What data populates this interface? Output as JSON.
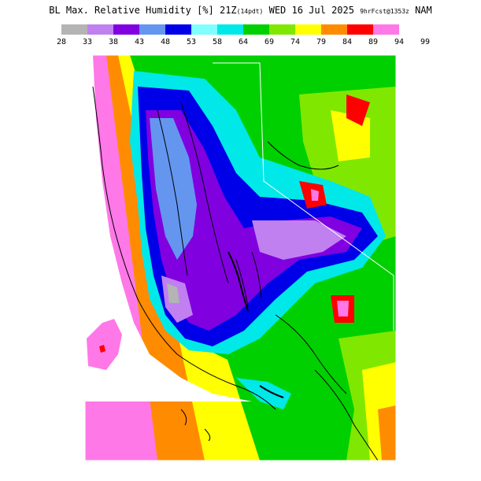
{
  "title": {
    "main": "BL Max. Relative Humidity [%] 21Z",
    "local": "(14pdt)",
    "date": "WED 16 Jul 2025",
    "fcst": "9hrFcst@1353z",
    "model": "NAM"
  },
  "legend": {
    "ticks": [
      "28",
      "33",
      "38",
      "43",
      "48",
      "53",
      "58",
      "64",
      "69",
      "74",
      "79",
      "84",
      "89",
      "94",
      "99"
    ],
    "colors": [
      "#b4b4b4",
      "#c080f0",
      "#8000e0",
      "#6496f0",
      "#0000e8",
      "#80ffff",
      "#00e8e8",
      "#00d000",
      "#80e800",
      "#ffff00",
      "#ff8c00",
      "#ff0000",
      "#ff78e8"
    ]
  },
  "chart_data": {
    "type": "heatmap",
    "variable": "BL Max. Relative Humidity",
    "units": "%",
    "valid_time": "21Z WED 16 Jul 2025",
    "local_time": "14pdt",
    "forecast": "9hr",
    "init": "1353z",
    "model": "NAM",
    "color_scale_bounds": [
      28,
      33,
      38,
      43,
      48,
      53,
      58,
      64,
      69,
      74,
      79,
      84,
      89,
      94,
      99
    ],
    "map_visible": true
  }
}
